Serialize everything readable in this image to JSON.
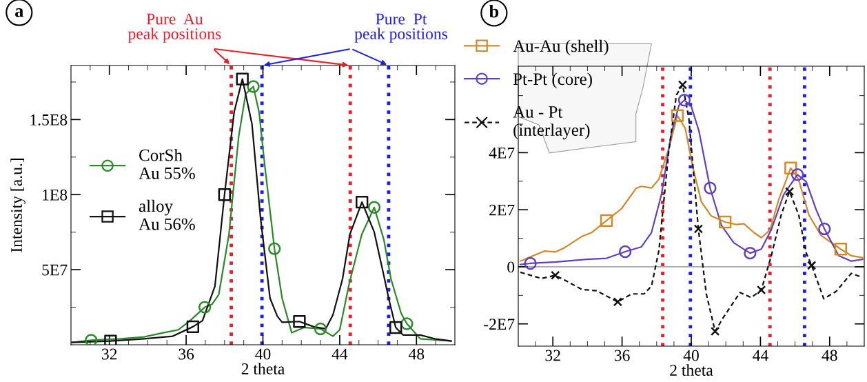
{
  "chart_data": [
    {
      "type": "line",
      "xlabel": "2 theta",
      "ylabel": "Intensity [a.u.]",
      "annotations": [
        "a",
        "Pure  Au\npeak positions",
        "Pure  Pt\npeak positions"
      ],
      "xlim": [
        30,
        50
      ],
      "ylim": [
        0,
        186000000.0
      ],
      "xticks": [
        {
          "value": 31,
          "label": null
        },
        32,
        {
          "value": 33,
          "label": null
        },
        {
          "value": 34,
          "label": null
        },
        {
          "value": 35,
          "label": null
        },
        36,
        {
          "value": 37,
          "label": null
        },
        {
          "value": 38,
          "label": null
        },
        {
          "value": 39,
          "label": null
        },
        40,
        {
          "value": 41,
          "label": null
        },
        {
          "value": 42,
          "label": null
        },
        {
          "value": 43,
          "label": null
        },
        44,
        {
          "value": 45,
          "label": null
        },
        {
          "value": 46,
          "label": null
        },
        {
          "value": 47,
          "label": null
        },
        48,
        {
          "value": 49,
          "label": null
        }
      ],
      "yticks": [
        {
          "value": 25000000.0,
          "label": null
        },
        {
          "value": 50000000.0,
          "label": "5E7"
        },
        {
          "value": 75000000.0,
          "label": null
        },
        {
          "value": 100000000.0,
          "label": "1E8"
        },
        {
          "value": 125000000.0,
          "label": null
        },
        {
          "value": 150000000.0,
          "label": "1.5E8"
        },
        {
          "value": 175000000.0,
          "label": null
        }
      ],
      "grid": false,
      "legend": "left",
      "ref_lines": [
        {
          "axis": "x",
          "value": 38.35,
          "label": null,
          "color": "#e8202a",
          "line_style": "dotted"
        },
        {
          "axis": "x",
          "value": 39.95,
          "label": null,
          "color": "#2020e0",
          "line_style": "dotted"
        },
        {
          "axis": "x",
          "value": 44.55,
          "label": null,
          "color": "#e8202a",
          "line_style": "dotted"
        },
        {
          "axis": "x",
          "value": 46.55,
          "label": null,
          "color": "#2020e0",
          "line_style": "dotted"
        }
      ],
      "series": [
        {
          "name": "CorSh\nAu 55%",
          "color": "#2a8a2a",
          "line_style": "solid",
          "x": [
            30.05,
            31.05,
            32.57,
            33.8,
            34.8,
            35.6,
            36.2,
            36.97,
            37.35,
            37.7,
            38.23,
            38.74,
            39.1,
            39.5,
            39.8,
            40.1,
            40.6,
            41.0,
            41.5,
            42.14,
            43.0,
            43.65,
            44.0,
            44.5,
            45.15,
            45.8,
            46.3,
            46.67,
            47.2,
            47.5,
            48.2,
            49.8
          ],
          "values": [
            1600000.0,
            3000000.0,
            4000000.0,
            5200000.0,
            8000000.0,
            10000000.0,
            16000000.0,
            25000000.0,
            27000000.0,
            33500000.0,
            73500000.0,
            139000000.0,
            167000000.0,
            172000000.0,
            155000000.0,
            119000000.0,
            64000000.0,
            31000000.0,
            8000000.0,
            11500000.0,
            10600000.0,
            5700000.0,
            10000000.0,
            41000000.0,
            73500000.0,
            91500000.0,
            70000000.0,
            44000000.0,
            21000000.0,
            14000000.0,
            4000000.0,
            2500000.0
          ]
        },
        {
          "type": "scatter",
          "color": "#2a8a2a",
          "marker": "circle",
          "x": [
            31.05,
            36.97,
            39.5,
            40.6,
            43.0,
            45.8,
            47.5
          ],
          "values": [
            3000000.0,
            25000000.0,
            172000000.0,
            64000000.0,
            10600000.0,
            91500000.0,
            14000000.0
          ]
        },
        {
          "name": "alloy\nAu 56%",
          "color": "#111111",
          "line_style": "solid",
          "x": [
            30.05,
            32.06,
            33.8,
            35.3,
            36.35,
            36.85,
            37.5,
            38.0,
            38.5,
            38.93,
            39.43,
            39.87,
            40.37,
            40.75,
            41.0,
            41.9,
            42.65,
            43.27,
            43.65,
            44.15,
            44.53,
            45.16,
            45.8,
            46.3,
            46.55,
            46.92,
            47.3,
            48.2,
            48.95,
            49.8
          ],
          "values": [
            1600000.0,
            2500000.0,
            4000000.0,
            5700000.0,
            12000000.0,
            16000000.0,
            39000000.0,
            100000000.0,
            155000000.0,
            177000000.0,
            147000000.0,
            85000000.0,
            31000000.0,
            19000000.0,
            15000000.0,
            15500000.0,
            12000000.0,
            10600000.0,
            20000000.0,
            44000000.0,
            73500000.0,
            95000000.0,
            75000000.0,
            46000000.0,
            31000000.0,
            11500000.0,
            6500000.0,
            6500000.0,
            4000000.0,
            2500000.0
          ]
        },
        {
          "type": "scatter",
          "color": "#111111",
          "marker": "square",
          "x": [
            32.06,
            36.35,
            38.0,
            38.93,
            41.9,
            45.16,
            46.92
          ],
          "values": [
            2500000.0,
            12000000.0,
            100000000.0,
            177000000.0,
            15500000.0,
            95000000.0,
            11500000.0
          ]
        }
      ]
    },
    {
      "type": "line",
      "xlabel": "2 theta",
      "annotations": [
        "b"
      ],
      "xlim": [
        30,
        50
      ],
      "ylim": [
        -27800000.0,
        70300000.0
      ],
      "xticks": [
        {
          "value": 31,
          "label": null
        },
        32,
        {
          "value": 33,
          "label": null
        },
        {
          "value": 34,
          "label": null
        },
        {
          "value": 35,
          "label": null
        },
        36,
        {
          "value": 37,
          "label": null
        },
        {
          "value": 38,
          "label": null
        },
        {
          "value": 39,
          "label": null
        },
        40,
        {
          "value": 41,
          "label": null
        },
        {
          "value": 42,
          "label": null
        },
        {
          "value": 43,
          "label": null
        },
        44,
        {
          "value": 45,
          "label": null
        },
        {
          "value": 46,
          "label": null
        },
        {
          "value": 47,
          "label": null
        },
        48,
        {
          "value": 49,
          "label": null
        }
      ],
      "yticks": [
        {
          "value": -20000000.0,
          "label": "-2E7"
        },
        {
          "value": -10000000.0,
          "label": null
        },
        0,
        {
          "value": 10000000.0,
          "label": null
        },
        {
          "value": 20000000.0,
          "label": "2E7"
        },
        {
          "value": 30000000.0,
          "label": null
        },
        {
          "value": 40000000.0,
          "label": "4E7"
        },
        {
          "value": 50000000.0,
          "label": null
        },
        {
          "value": 60000000.0,
          "label": null
        }
      ],
      "grid": false,
      "legend": "top left",
      "ref_lines": [
        {
          "axis": "y",
          "value": 0,
          "label": null,
          "color": "#aaaaaa",
          "line_style": "solid"
        },
        {
          "axis": "x",
          "value": 38.35,
          "label": null,
          "color": "#e8202a",
          "line_style": "dotted"
        },
        {
          "axis": "x",
          "value": 39.95,
          "label": null,
          "color": "#2020e0",
          "line_style": "dotted"
        },
        {
          "axis": "x",
          "value": 44.55,
          "label": null,
          "color": "#e8202a",
          "line_style": "dotted"
        },
        {
          "axis": "x",
          "value": 46.55,
          "label": null,
          "color": "#2020e0",
          "line_style": "dotted"
        }
      ],
      "series": [
        {
          "name": "Au-Au (shell)",
          "color": "#d08a2a",
          "line_style": "solid",
          "x": [
            30.12,
            31.5,
            32.14,
            32.65,
            33.66,
            34.24,
            35.1,
            35.97,
            36.83,
            37.12,
            37.7,
            38.13,
            38.7,
            39.2,
            39.65,
            40.08,
            40.59,
            41.16,
            41.96,
            42.6,
            43.04,
            43.62,
            44.05,
            44.55,
            45.06,
            45.75,
            46.2,
            46.8,
            47.5,
            48.64,
            49.25,
            49.9
          ],
          "values": [
            2000000.0,
            5500000.0,
            5200000.0,
            6600000.0,
            10600000.0,
            12000000.0,
            16200000.0,
            20400000.0,
            27600000.0,
            28200000.0,
            27600000.0,
            30700000.0,
            41400000.0,
            53000000.0,
            48600000.0,
            35200000.0,
            22700000.0,
            17800000.0,
            15700000.0,
            14800000.0,
            15100000.0,
            12000000.0,
            10200000.0,
            12900000.0,
            23600000.0,
            34600000.0,
            30700000.0,
            18200000.0,
            11000000.0,
            6200000.0,
            3900000.0,
            3200000.0
          ]
        },
        {
          "type": "scatter",
          "color": "#d08a2a",
          "marker": "square",
          "x": [
            35.1,
            39.2,
            41.96,
            45.75,
            48.64
          ],
          "values": [
            16200000.0,
            53000000.0,
            15700000.0,
            34600000.0,
            6200000.0
          ]
        },
        {
          "name": "Pt-Pt (core)",
          "color": "#6040c0",
          "line_style": "solid",
          "x": [
            30.12,
            30.7,
            32.2,
            33.95,
            35.1,
            36.18,
            37.12,
            37.7,
            38.28,
            38.85,
            39.29,
            39.6,
            40.0,
            40.44,
            41.09,
            41.74,
            42.46,
            43.4,
            44.05,
            44.62,
            45.35,
            46.14,
            46.65,
            47.22,
            47.7,
            48.52,
            49.25,
            49.9
          ],
          "values": [
            800000.0,
            1200000.0,
            1700000.0,
            2600000.0,
            3000000.0,
            5300000.0,
            7000000.0,
            12000000.0,
            25400000.0,
            46800000.0,
            56600000.0,
            58400000.0,
            56200000.0,
            47700000.0,
            27600000.0,
            14600000.0,
            8400000.0,
            4800000.0,
            6200000.0,
            12900000.0,
            25400000.0,
            32300000.0,
            29800000.0,
            20000000.0,
            13300000.0,
            3900000.0,
            2000000.0,
            2600000.0
          ]
        },
        {
          "type": "scatter",
          "color": "#6040c0",
          "marker": "circle",
          "x": [
            30.7,
            36.18,
            39.6,
            41.09,
            43.4,
            46.14,
            47.7
          ],
          "values": [
            1200000.0,
            5300000.0,
            58400000.0,
            27600000.0,
            4800000.0,
            32300000.0,
            13300000.0
          ]
        },
        {
          "name": "Au - Pt\n(interlayer)",
          "color": "#111111",
          "line_style": "dashed",
          "x": [
            30.12,
            31.35,
            32.14,
            32.8,
            33.66,
            34.53,
            35.75,
            36.55,
            37.27,
            37.7,
            38.13,
            38.7,
            39.14,
            39.5,
            39.86,
            40.15,
            40.41,
            40.87,
            41.38,
            41.88,
            42.82,
            43.47,
            44.05,
            44.63,
            45.2,
            45.68,
            46.21,
            46.65,
            46.96,
            47.66,
            48.38,
            49.25,
            49.9
          ],
          "values": [
            -1900000.0,
            -4100000.0,
            -3000000.0,
            -5000000.0,
            -7900000.0,
            -8400000.0,
            -12300000.0,
            -9500000.0,
            -9500000.0,
            -6800000.0,
            5700000.0,
            40500000.0,
            60200000.0,
            63800000.0,
            52100000.0,
            31600000.0,
            13300000.0,
            -9500000.0,
            -22600000.0,
            -17500000.0,
            -9000000.0,
            -10800000.0,
            -8100000.0,
            3900000.0,
            18200000.0,
            26400000.0,
            18200000.0,
            4800000.0,
            500000.0,
            -11200000.0,
            -8600000.0,
            -2300000.0,
            -3700000.0
          ]
        },
        {
          "type": "scatter",
          "color": "#111111",
          "marker": "cross",
          "x": [
            32.14,
            35.75,
            39.5,
            40.41,
            41.38,
            44.05,
            45.68,
            46.96
          ],
          "values": [
            -3000000.0,
            -12300000.0,
            63800000.0,
            13300000.0,
            -22600000.0,
            -8100000.0,
            26400000.0,
            500000.0
          ]
        }
      ]
    }
  ]
}
